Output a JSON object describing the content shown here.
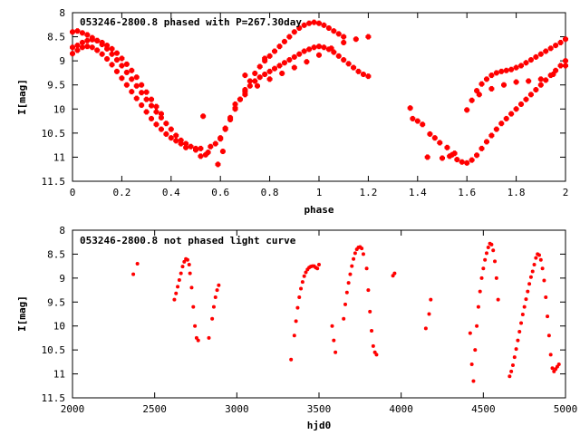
{
  "chart_data": [
    {
      "type": "scatter",
      "title": "053246-2800.8 phased with P=267.30day",
      "xlabel": "phase",
      "ylabel": "I[mag]",
      "xlim": [
        0,
        2
      ],
      "ylim": [
        8,
        11.5
      ],
      "y_inverted": true,
      "grid": false,
      "color": "#ff0000",
      "marker": "cross",
      "x_ticks": [
        "0",
        "0.2",
        "0.4",
        "0.6",
        "0.8",
        "1",
        "1.2",
        "1.4",
        "1.6",
        "1.8",
        "2"
      ],
      "y_ticks": [
        "8",
        "8.5",
        "9",
        "9.5",
        "10",
        "10.5",
        "11",
        "11.5"
      ],
      "series": [
        {
          "x": [
            0.0,
            0.02,
            0.04,
            0.06,
            0.08,
            0.1,
            0.12,
            0.14,
            0.16,
            0.18,
            0.2,
            0.22,
            0.24,
            0.26,
            0.28,
            0.3,
            0.32,
            0.34,
            0.36,
            0.38,
            0.4,
            0.42,
            0.44,
            0.46,
            0.48,
            0.5,
            0.0,
            0.02,
            0.04,
            0.06,
            0.08,
            0.1,
            0.12,
            0.14,
            0.16,
            0.18,
            0.2,
            0.22,
            0.24,
            0.26,
            0.28,
            0.3,
            0.32,
            0.34,
            0.36,
            0.0,
            0.02,
            0.04,
            0.06,
            0.08,
            0.1,
            0.12,
            0.14,
            0.16,
            0.18,
            0.2,
            0.22,
            0.24,
            0.26,
            0.28,
            0.3,
            0.32,
            0.34,
            0.36,
            0.38,
            0.4,
            0.42,
            0.44,
            0.46,
            0.5,
            0.52,
            0.55,
            0.56,
            0.58,
            0.6,
            0.62,
            0.64,
            0.66,
            0.68,
            0.7,
            0.72,
            0.74,
            0.76,
            0.78,
            0.8,
            0.82,
            0.84,
            0.86,
            0.88,
            0.9,
            0.92,
            0.94,
            0.96,
            0.98,
            1.0,
            1.02,
            1.04,
            1.06,
            1.08,
            1.1,
            0.6,
            0.62,
            0.64,
            0.66,
            0.68,
            0.7,
            0.72,
            0.74,
            0.76,
            0.78,
            0.8,
            0.82,
            0.84,
            0.86,
            0.88,
            0.9,
            0.92,
            0.94,
            0.96,
            0.98,
            1.0,
            1.02,
            1.04,
            1.06,
            1.08,
            1.1,
            1.12,
            1.14,
            1.16,
            1.18,
            1.2,
            0.66,
            0.7,
            0.75,
            0.8,
            0.85,
            0.9,
            0.95,
            1.0,
            1.05,
            1.1,
            1.15,
            1.2,
            0.53,
            0.59,
            0.52,
            0.61,
            0.54,
            0.7,
            0.78,
            1.37,
            1.38,
            1.4,
            1.42,
            1.45,
            1.47,
            1.49,
            1.52,
            1.54,
            1.56,
            1.58,
            1.6,
            1.62,
            1.64,
            1.66,
            1.68,
            1.7,
            1.72,
            1.74,
            1.76,
            1.78,
            1.8,
            1.82,
            1.84,
            1.86,
            1.88,
            1.9,
            1.92,
            1.94,
            1.96,
            1.98,
            2.0,
            1.6,
            1.62,
            1.64,
            1.66,
            1.68,
            1.7,
            1.72,
            1.74,
            1.76,
            1.78,
            1.8,
            1.82,
            1.84,
            1.86,
            1.88,
            1.9,
            1.92,
            1.94,
            1.96,
            1.98,
            2.0,
            1.65,
            1.7,
            1.75,
            1.8,
            1.85,
            1.9,
            1.95,
            2.0,
            1.44,
            1.5,
            1.53,
            1.55
          ],
          "y": [
            8.4,
            8.38,
            8.42,
            8.46,
            8.52,
            8.58,
            8.66,
            8.75,
            8.86,
            8.98,
            9.1,
            9.24,
            9.38,
            9.52,
            9.66,
            9.8,
            9.93,
            10.06,
            10.18,
            10.3,
            10.42,
            10.55,
            10.65,
            10.72,
            10.78,
            10.82,
            8.72,
            8.68,
            8.62,
            8.58,
            8.56,
            8.58,
            8.62,
            8.68,
            8.75,
            8.84,
            8.95,
            9.07,
            9.2,
            9.34,
            9.5,
            9.65,
            9.8,
            9.95,
            10.1,
            8.85,
            8.78,
            8.72,
            8.7,
            8.72,
            8.78,
            8.86,
            8.96,
            9.08,
            9.22,
            9.36,
            9.5,
            9.64,
            9.78,
            9.92,
            10.06,
            10.2,
            10.32,
            10.42,
            10.52,
            10.6,
            10.66,
            10.72,
            10.8,
            10.85,
            10.82,
            10.9,
            10.78,
            10.72,
            10.6,
            10.42,
            10.22,
            10.0,
            9.8,
            9.6,
            9.42,
            9.26,
            9.12,
            9.0,
            8.9,
            8.8,
            8.7,
            8.6,
            8.5,
            8.4,
            8.32,
            8.26,
            8.22,
            8.2,
            8.22,
            8.26,
            8.32,
            8.38,
            8.44,
            8.5,
            10.62,
            10.4,
            10.18,
            9.98,
            9.8,
            9.64,
            9.52,
            9.42,
            9.34,
            9.28,
            9.22,
            9.16,
            9.1,
            9.04,
            8.98,
            8.92,
            8.86,
            8.8,
            8.76,
            8.72,
            8.7,
            8.72,
            8.76,
            8.82,
            8.9,
            8.98,
            9.06,
            9.14,
            9.22,
            9.28,
            9.32,
            9.9,
            9.7,
            9.52,
            9.38,
            9.26,
            9.14,
            9.02,
            8.88,
            8.74,
            8.62,
            8.55,
            8.5,
            10.15,
            11.15,
            10.98,
            10.88,
            10.95,
            9.3,
            8.95,
            9.98,
            10.2,
            10.25,
            10.32,
            10.52,
            10.6,
            10.7,
            10.8,
            10.95,
            11.05,
            11.1,
            11.12,
            11.06,
            10.96,
            10.82,
            10.68,
            10.55,
            10.42,
            10.3,
            10.2,
            10.1,
            10.0,
            9.9,
            9.8,
            9.7,
            9.6,
            9.5,
            9.4,
            9.3,
            9.2,
            9.1,
            9.0,
            10.02,
            9.82,
            9.62,
            9.48,
            9.38,
            9.3,
            9.25,
            9.22,
            9.2,
            9.18,
            9.14,
            9.1,
            9.04,
            8.98,
            8.92,
            8.86,
            8.8,
            8.74,
            8.68,
            8.62,
            8.55,
            9.7,
            9.58,
            9.5,
            9.44,
            9.42,
            9.38,
            9.28,
            9.1,
            11.0,
            11.02,
            10.98,
            10.92
          ]
        }
      ]
    },
    {
      "type": "scatter",
      "title": "053246-2800.8 not phased light curve",
      "xlabel": "hjd0",
      "ylabel": "I[mag]",
      "xlim": [
        2000,
        5000
      ],
      "ylim": [
        8,
        11.5
      ],
      "y_inverted": true,
      "grid": false,
      "color": "#ff0000",
      "marker": "dot",
      "x_ticks": [
        "2000",
        "2500",
        "3000",
        "3500",
        "4000",
        "4500",
        "5000"
      ],
      "y_ticks": [
        "8",
        "8.5",
        "9",
        "9.5",
        "10",
        "10.5",
        "11",
        "11.5"
      ],
      "series": [
        {
          "x": [
            2370,
            2395,
            2620,
            2630,
            2640,
            2650,
            2660,
            2670,
            2680,
            2690,
            2700,
            2710,
            2715,
            2725,
            2735,
            2745,
            2755,
            2765,
            2830,
            2850,
            2860,
            2870,
            2880,
            2890,
            3330,
            3350,
            3360,
            3370,
            3380,
            3390,
            3400,
            3410,
            3420,
            3430,
            3440,
            3450,
            3460,
            3470,
            3480,
            3490,
            3500,
            3580,
            3590,
            3600,
            3650,
            3660,
            3670,
            3680,
            3690,
            3700,
            3710,
            3720,
            3730,
            3740,
            3750,
            3760,
            3770,
            3790,
            3800,
            3810,
            3820,
            3830,
            3840,
            3850,
            3950,
            3960,
            4150,
            4170,
            4180,
            4420,
            4430,
            4440,
            4450,
            4460,
            4470,
            4480,
            4490,
            4500,
            4510,
            4520,
            4530,
            4540,
            4550,
            4560,
            4570,
            4580,
            4590,
            4660,
            4670,
            4680,
            4690,
            4700,
            4710,
            4720,
            4730,
            4740,
            4750,
            4760,
            4770,
            4780,
            4790,
            4800,
            4810,
            4820,
            4830,
            4840,
            4850,
            4860,
            4870,
            4880,
            4890,
            4900,
            4910,
            4920,
            4930,
            4940,
            4950,
            4960
          ],
          "y": [
            8.92,
            8.7,
            9.45,
            9.32,
            9.18,
            9.04,
            8.9,
            8.76,
            8.66,
            8.6,
            8.62,
            8.72,
            8.9,
            9.2,
            9.6,
            10.0,
            10.25,
            10.3,
            10.25,
            9.85,
            9.6,
            9.4,
            9.25,
            9.15,
            10.7,
            10.2,
            9.9,
            9.62,
            9.4,
            9.22,
            9.08,
            8.96,
            8.88,
            8.82,
            8.78,
            8.76,
            8.75,
            8.75,
            8.78,
            8.8,
            8.72,
            10.0,
            10.3,
            10.55,
            9.85,
            9.55,
            9.3,
            9.1,
            8.92,
            8.75,
            8.6,
            8.48,
            8.4,
            8.36,
            8.35,
            8.38,
            8.5,
            8.8,
            9.25,
            9.7,
            10.1,
            10.42,
            10.55,
            10.6,
            8.95,
            8.9,
            10.05,
            9.75,
            9.45,
            10.15,
            10.8,
            11.15,
            10.5,
            10.0,
            9.6,
            9.28,
            9.0,
            8.8,
            8.62,
            8.48,
            8.36,
            8.28,
            8.3,
            8.42,
            8.65,
            9.0,
            9.45,
            11.05,
            10.95,
            10.82,
            10.65,
            10.48,
            10.3,
            10.12,
            9.94,
            9.76,
            9.6,
            9.44,
            9.28,
            9.12,
            8.98,
            8.86,
            8.72,
            8.58,
            8.5,
            8.52,
            8.62,
            8.8,
            9.05,
            9.4,
            9.8,
            10.2,
            10.6,
            10.88,
            10.95,
            10.9,
            10.85,
            10.8
          ]
        }
      ]
    }
  ]
}
